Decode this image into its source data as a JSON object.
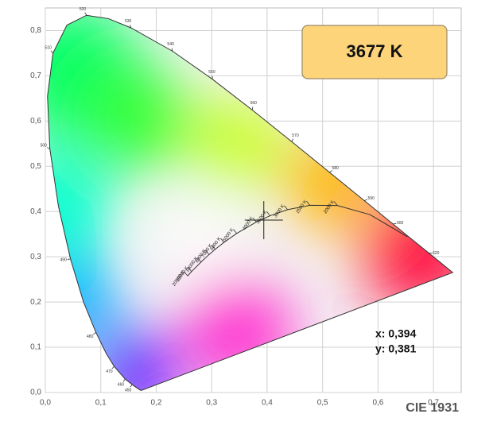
{
  "chart_data": {
    "type": "chromaticity",
    "title": "CIE 1931",
    "cct_label": "3677 K",
    "point": {
      "x": 0.394,
      "y": 0.381,
      "x_label": "x: 0,394",
      "y_label": "y: 0,381"
    },
    "xlim": [
      0,
      0.75
    ],
    "ylim": [
      0,
      0.85
    ],
    "xticks": [
      {
        "value": 0,
        "label": "0,0"
      },
      {
        "value": 0.1,
        "label": "0,1"
      },
      {
        "value": 0.2,
        "label": "0,2"
      },
      {
        "value": 0.3,
        "label": "0,3"
      },
      {
        "value": 0.4,
        "label": "0,4"
      },
      {
        "value": 0.5,
        "label": "0,5"
      },
      {
        "value": 0.6,
        "label": "0,6"
      },
      {
        "value": 0.7,
        "label": "0,7"
      }
    ],
    "yticks": [
      {
        "value": 0,
        "label": "0,0"
      },
      {
        "value": 0.1,
        "label": "0,1"
      },
      {
        "value": 0.2,
        "label": "0,2"
      },
      {
        "value": 0.3,
        "label": "0,3"
      },
      {
        "value": 0.4,
        "label": "0,4"
      },
      {
        "value": 0.5,
        "label": "0,5"
      },
      {
        "value": 0.6,
        "label": "0,6"
      },
      {
        "value": 0.7,
        "label": "0,7"
      },
      {
        "value": 0.8,
        "label": "0,8"
      }
    ],
    "grid": true,
    "spectral_locus": {
      "x": [
        0.1741,
        0.1714,
        0.1644,
        0.1566,
        0.144,
        0.1241,
        0.1096,
        0.0913,
        0.0687,
        0.0454,
        0.0235,
        0.0082,
        0.0039,
        0.0139,
        0.0389,
        0.0743,
        0.1142,
        0.1547,
        0.2296,
        0.3016,
        0.3731,
        0.4441,
        0.5125,
        0.5752,
        0.627,
        0.6915,
        0.719,
        0.7347
      ],
      "y": [
        0.005,
        0.0051,
        0.0109,
        0.0177,
        0.0297,
        0.0578,
        0.0868,
        0.1327,
        0.2007,
        0.295,
        0.4127,
        0.5384,
        0.6548,
        0.7502,
        0.812,
        0.8338,
        0.8262,
        0.8059,
        0.7543,
        0.6923,
        0.6245,
        0.5547,
        0.4866,
        0.4242,
        0.3725,
        0.3083,
        0.2809,
        0.2653
      ],
      "labels": [
        null,
        null,
        null,
        450,
        460,
        470,
        null,
        480,
        null,
        490,
        null,
        500,
        null,
        510,
        null,
        520,
        null,
        530,
        540,
        550,
        560,
        570,
        580,
        590,
        600,
        620,
        null,
        null
      ]
    },
    "planckian_locus": {
      "x": [
        0.6528,
        0.5857,
        0.5267,
        0.477,
        0.4369,
        0.4053,
        0.3805,
        0.3451,
        0.3221,
        0.3064,
        0.2952,
        0.2807,
        0.2637,
        0.2566
      ],
      "y": [
        0.3444,
        0.3931,
        0.4133,
        0.4137,
        0.4041,
        0.3907,
        0.3768,
        0.3516,
        0.3318,
        0.3166,
        0.3048,
        0.2883,
        0.2673,
        0.2577
      ],
      "labels": [
        null,
        null,
        "2000 K",
        "2500 K",
        "3000 K",
        "3500 K",
        "4000 K",
        "5000 K",
        "6000 K",
        "7000 K",
        "8000 K",
        "10000 K",
        "15000 K",
        "20000 K"
      ]
    }
  }
}
